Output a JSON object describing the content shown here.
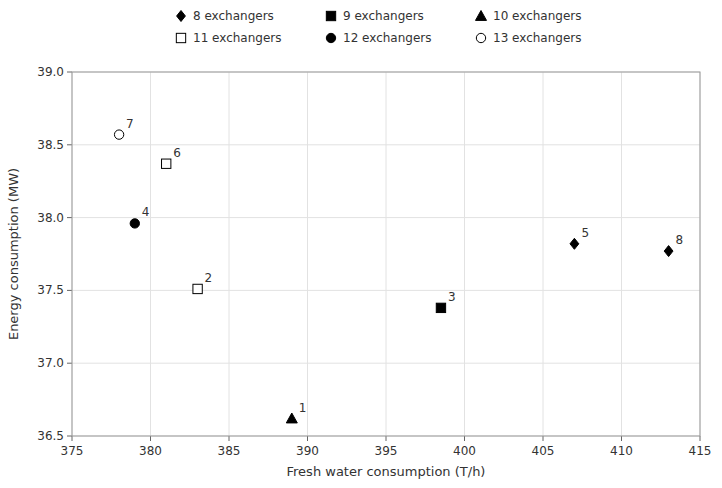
{
  "chart_data": {
    "type": "scatter",
    "xlabel": "Fresh water consumption (T/h)",
    "ylabel": "Energy consumption (MW)",
    "xlim": [
      375,
      415
    ],
    "xticks": [
      375,
      380,
      385,
      390,
      395,
      400,
      405,
      410,
      415
    ],
    "ylim": [
      36.5,
      39.0
    ],
    "yticks": [
      36.5,
      {
        "value": 37.0,
        "label": "37.0"
      },
      37.5,
      {
        "value": 38.0,
        "label": "38.0"
      },
      38.5,
      {
        "value": 39.0,
        "label": "39.0"
      }
    ],
    "grid": true,
    "legend": "top",
    "series": [
      {
        "name": "8 exchangers",
        "marker": "diamond",
        "color": "black",
        "x": [
          407,
          413
        ],
        "values": [
          37.82,
          37.77
        ],
        "labels": [
          "5",
          "8"
        ]
      },
      {
        "name": "9 exchangers",
        "marker": "square",
        "color": "black",
        "x": [
          398.5
        ],
        "values": [
          37.38
        ],
        "labels": [
          "3"
        ]
      },
      {
        "name": "10 exchangers",
        "marker": "triangle",
        "color": "black",
        "x": [
          389
        ],
        "values": [
          36.62
        ],
        "labels": [
          "1"
        ]
      },
      {
        "name": "11 exchangers",
        "marker": "square",
        "color": "white",
        "x": [
          383,
          381
        ],
        "values": [
          37.51,
          38.37
        ],
        "labels": [
          "2",
          "6"
        ]
      },
      {
        "name": "12 exchangers",
        "marker": "circle",
        "color": "black",
        "x": [
          379
        ],
        "values": [
          37.96
        ],
        "labels": [
          "4"
        ]
      },
      {
        "name": "13 exchangers",
        "marker": "circle",
        "color": "white",
        "x": [
          378
        ],
        "values": [
          38.57
        ],
        "labels": [
          "7"
        ]
      }
    ]
  }
}
